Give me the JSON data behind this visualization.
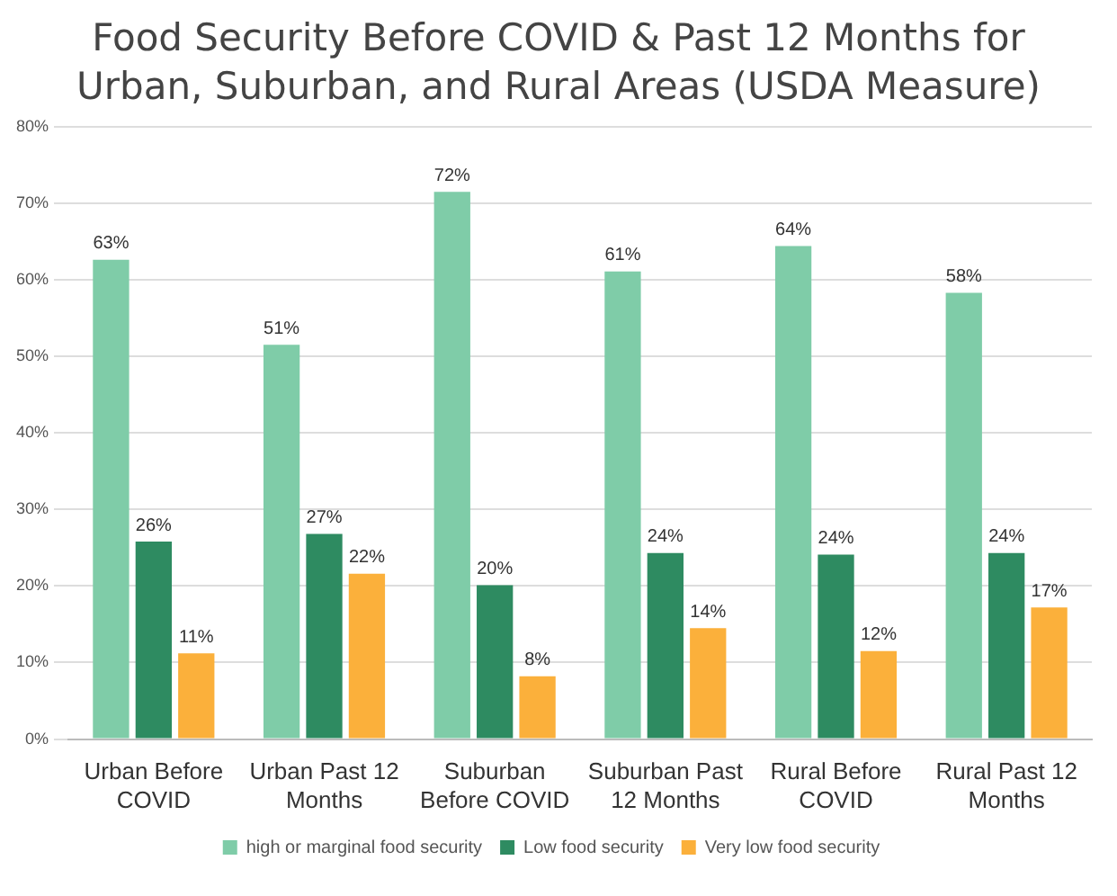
{
  "chart_data": {
    "type": "bar",
    "title": "Food Security Before COVID & Past 12 Months for Urban, Suburban, and Rural Areas (USDA Measure)",
    "categories": [
      "Urban Before COVID",
      "Urban Past 12 Months",
      "Suburban Before COVID",
      "Suburban Past 12 Months",
      "Rural Before COVID",
      "Rural Past 12 Months"
    ],
    "series": [
      {
        "name": "high or marginal food security",
        "color": "#7fcca8",
        "values": [
          62.6,
          51.5,
          71.5,
          61.1,
          64.4,
          58.3
        ],
        "value_labels": [
          "63%",
          "51%",
          "72%",
          "61%",
          "64%",
          "58%"
        ]
      },
      {
        "name": "Low food security",
        "color": "#2e8b61",
        "values": [
          25.8,
          26.8,
          20.1,
          24.3,
          24.1,
          24.3
        ],
        "value_labels": [
          "26%",
          "27%",
          "20%",
          "24%",
          "24%",
          "24%"
        ]
      },
      {
        "name": "Very low food security",
        "color": "#fbb03b",
        "values": [
          11.2,
          21.6,
          8.2,
          14.5,
          11.5,
          17.2
        ],
        "value_labels": [
          "11%",
          "22%",
          "8%",
          "14%",
          "12%",
          "17%"
        ]
      }
    ],
    "ylim": [
      0,
      80
    ],
    "yticks": [
      {
        "value": 0,
        "label": "0%"
      },
      {
        "value": 10,
        "label": "10%"
      },
      {
        "value": 20,
        "label": "20%"
      },
      {
        "value": 30,
        "label": "30%"
      },
      {
        "value": 40,
        "label": "40%"
      },
      {
        "value": 50,
        "label": "50%"
      },
      {
        "value": 60,
        "label": "60%"
      },
      {
        "value": 70,
        "label": "70%"
      },
      {
        "value": 80,
        "label": "80%"
      }
    ],
    "grid": "y",
    "legend": "bottom"
  }
}
